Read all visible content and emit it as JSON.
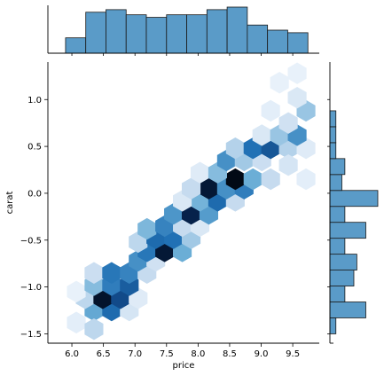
{
  "chart_data": {
    "type": "hexbin-jointplot",
    "xlabel": "price",
    "ylabel": "carat",
    "xlim": [
      5.62,
      9.92
    ],
    "ylim": [
      -1.6,
      1.4
    ],
    "x_ticks": [
      "6.0",
      "6.5",
      "7.0",
      "7.5",
      "8.0",
      "8.5",
      "9.0",
      "9.5"
    ],
    "y_ticks": [
      "1.0",
      "0.5",
      "0.0",
      "−0.5",
      "−1.0",
      "−1.5"
    ],
    "x_tick_values": [
      6.0,
      6.5,
      7.0,
      7.5,
      8.0,
      8.5,
      9.0,
      9.5
    ],
    "y_tick_values": [
      1.0,
      0.5,
      0.0,
      -0.5,
      -1.0,
      -1.5
    ],
    "colormap": "Blues",
    "base_color": "#4c8fc4",
    "hexbins": [
      {
        "x": 6.35,
        "y": -1.25,
        "density": 0.42
      },
      {
        "x": 6.63,
        "y": -1.25,
        "density": 0.62
      },
      {
        "x": 6.91,
        "y": -1.25,
        "density": 0.14
      },
      {
        "x": 6.21,
        "y": -1.12,
        "density": 0.22
      },
      {
        "x": 6.49,
        "y": -1.12,
        "density": 0.92
      },
      {
        "x": 6.77,
        "y": -1.12,
        "density": 0.72
      },
      {
        "x": 7.05,
        "y": -1.12,
        "density": 0.1
      },
      {
        "x": 6.07,
        "y": -1.38,
        "density": 0.08
      },
      {
        "x": 6.35,
        "y": -1.45,
        "density": 0.22
      },
      {
        "x": 6.07,
        "y": -1.05,
        "density": 0.06
      },
      {
        "x": 6.35,
        "y": -0.98,
        "density": 0.34
      },
      {
        "x": 6.63,
        "y": -0.98,
        "density": 0.56
      },
      {
        "x": 6.91,
        "y": -0.98,
        "density": 0.66
      },
      {
        "x": 6.35,
        "y": -0.85,
        "density": 0.18
      },
      {
        "x": 6.63,
        "y": -0.85,
        "density": 0.58
      },
      {
        "x": 6.91,
        "y": -0.85,
        "density": 0.54
      },
      {
        "x": 7.19,
        "y": -0.85,
        "density": 0.2
      },
      {
        "x": 7.05,
        "y": -0.72,
        "density": 0.5
      },
      {
        "x": 7.33,
        "y": -0.72,
        "density": 0.16
      },
      {
        "x": 7.19,
        "y": -0.62,
        "density": 0.58
      },
      {
        "x": 7.47,
        "y": -0.62,
        "density": 0.9
      },
      {
        "x": 7.75,
        "y": -0.62,
        "density": 0.4
      },
      {
        "x": 7.05,
        "y": -0.52,
        "density": 0.22
      },
      {
        "x": 7.33,
        "y": -0.48,
        "density": 0.62
      },
      {
        "x": 7.61,
        "y": -0.48,
        "density": 0.6
      },
      {
        "x": 7.89,
        "y": -0.48,
        "density": 0.28
      },
      {
        "x": 7.19,
        "y": -0.38,
        "density": 0.36
      },
      {
        "x": 7.47,
        "y": -0.35,
        "density": 0.54
      },
      {
        "x": 7.75,
        "y": -0.35,
        "density": 0.2
      },
      {
        "x": 8.03,
        "y": -0.35,
        "density": 0.12
      },
      {
        "x": 7.61,
        "y": -0.22,
        "density": 0.48
      },
      {
        "x": 7.89,
        "y": -0.22,
        "density": 0.86
      },
      {
        "x": 8.17,
        "y": -0.22,
        "density": 0.46
      },
      {
        "x": 8.03,
        "y": -0.08,
        "density": 0.38
      },
      {
        "x": 8.31,
        "y": -0.08,
        "density": 0.62
      },
      {
        "x": 8.59,
        "y": -0.08,
        "density": 0.2
      },
      {
        "x": 7.75,
        "y": -0.08,
        "density": 0.12
      },
      {
        "x": 8.17,
        "y": 0.05,
        "density": 0.9
      },
      {
        "x": 8.45,
        "y": 0.05,
        "density": 0.5
      },
      {
        "x": 8.73,
        "y": 0.05,
        "density": 0.56
      },
      {
        "x": 7.89,
        "y": 0.05,
        "density": 0.2
      },
      {
        "x": 8.59,
        "y": 0.15,
        "density": 0.96
      },
      {
        "x": 8.87,
        "y": 0.15,
        "density": 0.4
      },
      {
        "x": 9.15,
        "y": 0.15,
        "density": 0.2
      },
      {
        "x": 8.03,
        "y": 0.22,
        "density": 0.1
      },
      {
        "x": 8.31,
        "y": 0.22,
        "density": 0.34
      },
      {
        "x": 8.45,
        "y": 0.35,
        "density": 0.5
      },
      {
        "x": 8.73,
        "y": 0.35,
        "density": 0.28
      },
      {
        "x": 9.01,
        "y": 0.35,
        "density": 0.18
      },
      {
        "x": 8.59,
        "y": 0.48,
        "density": 0.24
      },
      {
        "x": 8.87,
        "y": 0.48,
        "density": 0.6
      },
      {
        "x": 9.15,
        "y": 0.48,
        "density": 0.68
      },
      {
        "x": 9.43,
        "y": 0.48,
        "density": 0.24
      },
      {
        "x": 9.71,
        "y": 0.48,
        "density": 0.1
      },
      {
        "x": 9.01,
        "y": 0.62,
        "density": 0.12
      },
      {
        "x": 9.29,
        "y": 0.62,
        "density": 0.3
      },
      {
        "x": 9.57,
        "y": 0.62,
        "density": 0.5
      },
      {
        "x": 9.43,
        "y": 0.75,
        "density": 0.16
      },
      {
        "x": 9.71,
        "y": 0.88,
        "density": 0.3
      },
      {
        "x": 9.15,
        "y": 0.88,
        "density": 0.08
      },
      {
        "x": 9.57,
        "y": 1.02,
        "density": 0.12
      },
      {
        "x": 9.57,
        "y": 1.28,
        "density": 0.06
      },
      {
        "x": 9.29,
        "y": 1.18,
        "density": 0.06
      },
      {
        "x": 9.71,
        "y": 0.15,
        "density": 0.08
      },
      {
        "x": 9.43,
        "y": 0.3,
        "density": 0.14
      }
    ],
    "x_marginal": {
      "bin_edges": [
        5.9,
        6.22,
        6.54,
        6.86,
        7.18,
        7.5,
        7.82,
        8.14,
        8.46,
        8.78,
        9.1,
        9.42,
        9.74
      ],
      "counts": [
        6,
        16,
        17,
        15,
        14,
        15,
        15,
        17,
        18,
        11,
        9,
        8
      ]
    },
    "y_marginal": {
      "bin_edges": [
        -1.5,
        -1.33,
        -1.16,
        -0.99,
        -0.82,
        -0.65,
        -0.48,
        -0.31,
        -0.14,
        0.03,
        0.2,
        0.37,
        0.54,
        0.71,
        0.88,
        1.05
      ],
      "counts": [
        2,
        12,
        5,
        8,
        9,
        5,
        12,
        5,
        16,
        4,
        5,
        2,
        2,
        2,
        0
      ]
    }
  }
}
